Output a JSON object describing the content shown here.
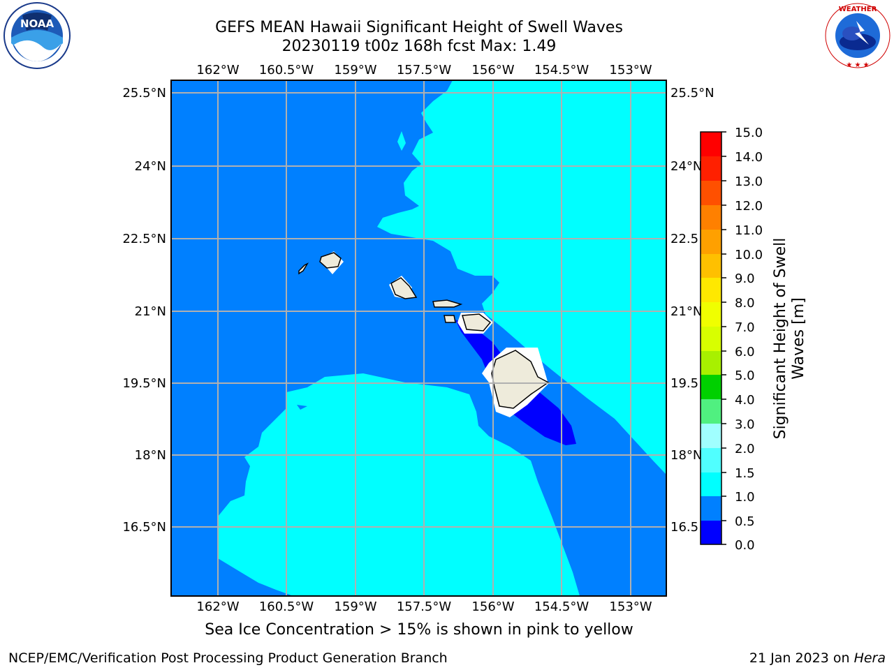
{
  "header": {
    "title": "GEFS MEAN Hawaii Significant Height of Swell Waves",
    "subtitle": "20230119 t00z 168h fcst   Max: 1.49"
  },
  "map": {
    "lon_ticks": [
      "162°W",
      "160.5°W",
      "159°W",
      "157.5°W",
      "156°W",
      "154.5°W",
      "153°W"
    ],
    "lat_ticks": [
      "25.5°N",
      "24°N",
      "22.5°N",
      "21°N",
      "19.5°N",
      "18°N",
      "16.5°N"
    ],
    "lat_ticks_right": [
      "25.5°N",
      "24°N",
      "22.5",
      "21°N",
      "19.5",
      "18°N",
      "16.5"
    ],
    "colors": {
      "ocean_low": "#0000ff",
      "ocean_mid": "#0080ff",
      "ocean_high": "#00ffff",
      "land": "#eeebdb",
      "grid": "#b0b0b0"
    }
  },
  "colorbar": {
    "label_line1": "Significant Height of Swell",
    "label_line2": "Waves [m]",
    "ticks": [
      "15.0",
      "14.0",
      "13.0",
      "12.0",
      "11.0",
      "10.0",
      "9.0",
      "8.0",
      "7.0",
      "6.0",
      "5.0",
      "4.0",
      "3.0",
      "2.0",
      "1.5",
      "1.0",
      "0.5",
      "0.0"
    ],
    "colors_top_to_bottom": [
      "#ff0000",
      "#ff2000",
      "#ff5000",
      "#ff8000",
      "#ffa000",
      "#ffc000",
      "#ffe800",
      "#f0ff00",
      "#d8ff00",
      "#c0ff00",
      "#90f000",
      "#60e000",
      "#00d000",
      "#50f080",
      "#a0ffff",
      "#50ffff",
      "#00ffff",
      "#0080ff",
      "#0000ff"
    ]
  },
  "note": "Sea Ice Concentration > 15% is shown in pink to yellow",
  "footer": {
    "left": "NCEP/EMC/Verification Post Processing Product Generation Branch",
    "date": "21 Jan 2023 on ",
    "host": "Hera"
  },
  "logos": {
    "noaa_text": "NOAA",
    "nws_text": "NATIONAL WEATHER SERVICE"
  }
}
